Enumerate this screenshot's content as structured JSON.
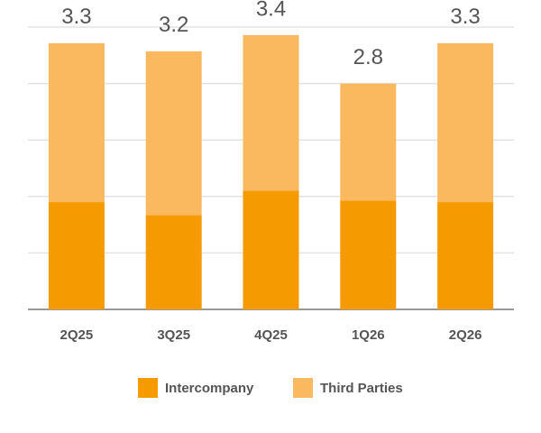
{
  "chart_data": {
    "type": "stacked-bar",
    "categories": [
      "2Q25",
      "3Q25",
      "4Q25",
      "1Q26",
      "2Q26"
    ],
    "series": [
      {
        "name": "Intercompany",
        "color": "#f59a00",
        "values": [
          1.33,
          1.17,
          1.47,
          1.35,
          1.33
        ]
      },
      {
        "name": "Third Parties",
        "color": "#fbb95f",
        "values": [
          1.97,
          2.03,
          1.93,
          1.45,
          1.97
        ]
      }
    ],
    "totals": [
      3.3,
      3.2,
      3.4,
      2.8,
      3.3
    ],
    "ylim": [
      0,
      3.5
    ],
    "yticks": [
      0,
      0.7,
      1.4,
      2.1,
      2.8,
      3.5
    ],
    "grid": true
  }
}
